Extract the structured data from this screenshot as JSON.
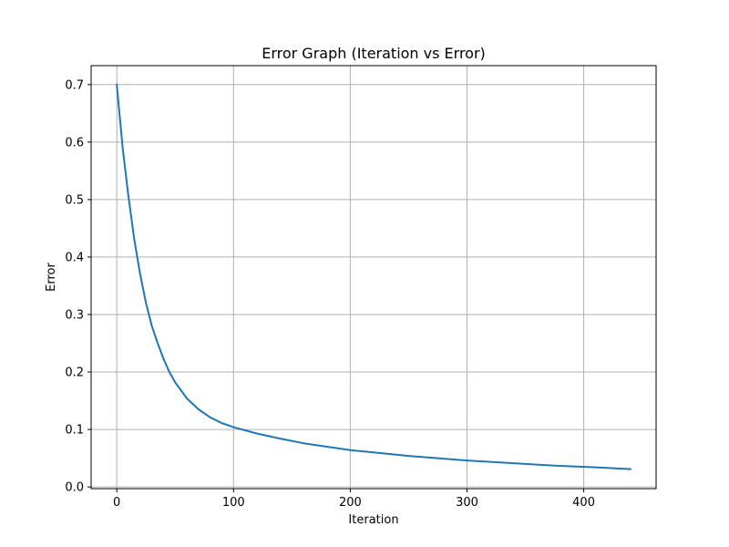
{
  "chart_data": {
    "type": "line",
    "title": "Error Graph (Iteration vs Error)",
    "xlabel": "Iteration",
    "ylabel": "Error",
    "xlim": [
      -22,
      462
    ],
    "ylim": [
      -0.003,
      0.733
    ],
    "xticks": [
      0,
      100,
      200,
      300,
      400
    ],
    "yticks": [
      0.0,
      0.1,
      0.2,
      0.3,
      0.4,
      0.5,
      0.6,
      0.7
    ],
    "grid": true,
    "series": [
      {
        "color": "#1f77b4",
        "x": [
          0,
          5,
          10,
          15,
          20,
          25,
          30,
          35,
          40,
          45,
          50,
          60,
          70,
          80,
          90,
          100,
          120,
          140,
          160,
          180,
          200,
          225,
          250,
          275,
          300,
          325,
          350,
          375,
          400,
          420,
          440
        ],
        "y": [
          0.7,
          0.59,
          0.505,
          0.43,
          0.37,
          0.32,
          0.28,
          0.25,
          0.223,
          0.2,
          0.182,
          0.154,
          0.135,
          0.121,
          0.111,
          0.104,
          0.093,
          0.084,
          0.076,
          0.07,
          0.064,
          0.059,
          0.054,
          0.05,
          0.046,
          0.043,
          0.04,
          0.037,
          0.035,
          0.033,
          0.031
        ]
      }
    ]
  }
}
